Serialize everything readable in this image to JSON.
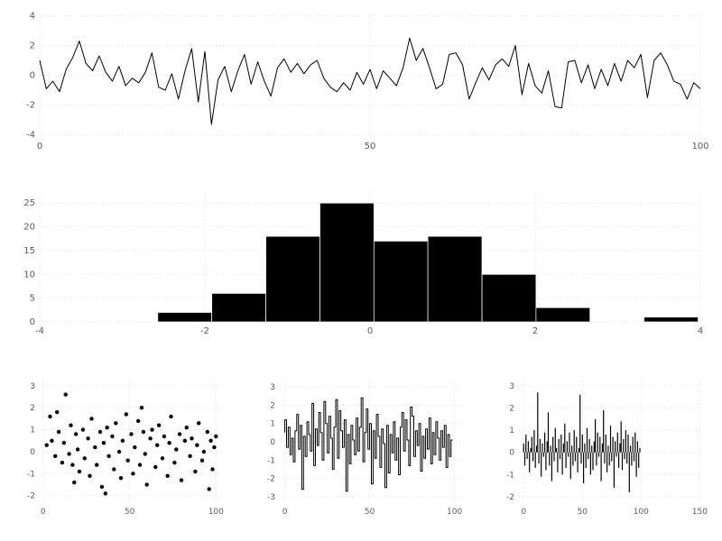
{
  "figure": {
    "background": "#ffffff",
    "foreground": "#000000",
    "grid_color": "#dcdcdc",
    "tick_label_color": "#5a5a5a"
  },
  "chart_data": [
    {
      "name": "noise-line-plot",
      "type": "line",
      "kind": "line",
      "title": "",
      "xlabel": "",
      "ylabel": "",
      "legend_position": "none",
      "grid": true,
      "x0": 0,
      "dx": 1,
      "y": [
        1.0,
        -0.9,
        -0.4,
        -1.1,
        0.4,
        1.2,
        2.3,
        0.8,
        0.3,
        1.3,
        0.2,
        -0.4,
        0.6,
        -0.7,
        -0.2,
        -0.5,
        0.2,
        1.5,
        -0.8,
        -1.0,
        0.1,
        -1.6,
        0.3,
        1.8,
        -1.8,
        1.6,
        -3.3,
        -0.3,
        0.6,
        -1.1,
        0.3,
        1.4,
        -0.6,
        0.9,
        -0.4,
        -1.4,
        0.5,
        1.1,
        0.2,
        0.8,
        0.1,
        0.7,
        1.0,
        -0.2,
        -0.8,
        -1.1,
        -0.5,
        -1.0,
        0.2,
        -0.6,
        0.4,
        -0.9,
        0.3,
        -0.2,
        -0.7,
        0.5,
        2.5,
        1.0,
        1.8,
        0.5,
        -0.9,
        -0.6,
        1.4,
        1.5,
        0.7,
        -1.6,
        -0.5,
        0.5,
        -0.3,
        0.7,
        1.1,
        0.6,
        2.0,
        -1.3,
        0.8,
        -0.7,
        -1.2,
        0.3,
        -2.1,
        -2.2,
        0.9,
        1.0,
        -0.5,
        0.7,
        -0.9,
        0.4,
        -0.7,
        0.8,
        -0.4,
        1.0,
        0.5,
        1.4,
        -1.5,
        1.0,
        1.5,
        0.7,
        -0.4,
        -0.6,
        -1.6,
        -0.5,
        -0.9
      ],
      "xlim": [
        0,
        100
      ],
      "ylim": [
        -4.15,
        4.15
      ],
      "xticks": [
        0,
        50,
        100
      ],
      "yticks": [
        -4,
        -2,
        0,
        2,
        4
      ]
    },
    {
      "name": "histogram",
      "type": "bar",
      "kind": "histogram",
      "title": "",
      "xlabel": "",
      "ylabel": "",
      "legend_position": "none",
      "grid": true,
      "bin_edges": [
        -2.57,
        -1.916,
        -1.261,
        -0.607,
        0.047,
        0.701,
        1.356,
        2.01,
        2.664,
        3.318,
        3.973
      ],
      "counts": [
        2,
        6,
        18,
        25,
        17,
        18,
        10,
        3,
        0,
        1
      ],
      "xlim": [
        -4,
        4
      ],
      "ylim": [
        0,
        27.5
      ],
      "xticks": [
        -4,
        -2,
        0,
        2,
        4
      ],
      "yticks": [
        0,
        5,
        10,
        15,
        20,
        25
      ]
    },
    {
      "name": "scatter-plot",
      "type": "scatter",
      "kind": "scatter",
      "title": "",
      "xlabel": "",
      "ylabel": "",
      "legend_position": "none",
      "grid": true,
      "x": [
        2,
        4,
        5,
        7,
        8,
        9,
        11,
        12,
        13,
        15,
        16,
        18,
        19,
        20,
        21,
        23,
        24,
        26,
        27,
        28,
        30,
        31,
        33,
        34,
        35,
        37,
        38,
        40,
        41,
        42,
        44,
        45,
        46,
        48,
        49,
        51,
        52,
        53,
        55,
        56,
        58,
        59,
        60,
        62,
        63,
        65,
        66,
        67,
        69,
        70,
        72,
        73,
        74,
        76,
        77,
        79,
        80,
        82,
        83,
        85,
        86,
        88,
        89,
        90,
        92,
        93,
        95,
        96,
        97,
        98,
        99,
        100,
        36,
        57,
        17
      ],
      "y": [
        0.3,
        1.6,
        0.5,
        -0.2,
        1.8,
        0.9,
        -0.5,
        0.4,
        2.6,
        -0.1,
        1.2,
        -1.4,
        0.8,
        0.1,
        -0.9,
        1.0,
        -0.3,
        0.6,
        -1.1,
        1.5,
        0.2,
        -0.6,
        0.9,
        -1.6,
        0.4,
        1.1,
        -0.2,
        0.7,
        -0.8,
        1.3,
        0.0,
        -1.2,
        0.5,
        1.7,
        -0.4,
        0.8,
        -1.0,
        0.2,
        1.4,
        -0.6,
        0.9,
        -0.1,
        -1.5,
        0.6,
        1.0,
        -0.7,
        0.3,
        1.2,
        -0.3,
        0.7,
        -1.1,
        0.4,
        1.6,
        -0.5,
        0.1,
        0.8,
        -1.3,
        0.5,
        1.1,
        -0.2,
        0.6,
        -0.9,
        0.3,
        1.3,
        -0.4,
        0.0,
        0.9,
        -1.7,
        0.5,
        -0.8,
        0.2,
        0.7,
        -1.9,
        2.0,
        -0.6
      ],
      "xlim": [
        -2,
        104
      ],
      "ylim": [
        -2.3,
        3.2
      ],
      "xticks": [
        0,
        50,
        100
      ],
      "yticks": [
        -2,
        -1,
        0,
        1,
        2,
        3
      ]
    },
    {
      "name": "step-plot",
      "type": "line",
      "kind": "step",
      "title": "",
      "xlabel": "",
      "ylabel": "",
      "legend_position": "none",
      "grid": true,
      "x0": 0,
      "dx": 1,
      "y": [
        0.5,
        1.2,
        -0.3,
        0.8,
        -0.7,
        0.2,
        -1.1,
        0.6,
        1.5,
        -0.4,
        0.9,
        -2.6,
        0.3,
        -0.8,
        1.1,
        0.4,
        -0.5,
        2.1,
        -1.3,
        0.7,
        -0.2,
        1.6,
        0.5,
        -1.0,
        2.2,
        1.0,
        -0.6,
        1.4,
        0.2,
        -1.5,
        0.8,
        2.3,
        -0.9,
        1.7,
        0.6,
        -0.3,
        1.2,
        -2.7,
        0.4,
        -1.2,
        0.9,
        0.1,
        -0.7,
        1.3,
        -0.5,
        0.8,
        2.4,
        -1.1,
        0.5,
        1.8,
        -0.4,
        1.0,
        -2.3,
        0.6,
        -0.9,
        1.5,
        0.3,
        -1.4,
        0.7,
        -0.1,
        -2.5,
        0.9,
        -1.7,
        0.4,
        -0.6,
        1.1,
        -1.0,
        0.2,
        -1.8,
        0.8,
        1.6,
        -0.5,
        1.2,
        0.1,
        -1.3,
        1.9,
        1.4,
        -0.8,
        0.6,
        -0.2,
        1.0,
        -1.6,
        0.3,
        -0.9,
        0.7,
        -0.4,
        1.3,
        -1.2,
        0.5,
        -0.7,
        1.1,
        0.2,
        -1.0,
        0.6,
        -0.3,
        0.9,
        -1.4,
        0.4,
        -0.8,
        0.1
      ],
      "xlim": [
        -3,
        105
      ],
      "ylim": [
        -3.3,
        3.3
      ],
      "xticks": [
        0,
        50,
        100
      ],
      "yticks": [
        -3,
        -2,
        -1,
        0,
        1,
        2,
        3
      ]
    },
    {
      "name": "stem-plot",
      "type": "bar",
      "kind": "stem",
      "title": "",
      "xlabel": "",
      "ylabel": "",
      "legend_position": "none",
      "grid": true,
      "x0": 0,
      "dx": 1,
      "y": [
        0.4,
        -0.6,
        0.8,
        -0.3,
        0.5,
        -0.9,
        0.2,
        0.7,
        -0.4,
        1.0,
        -0.7,
        0.3,
        2.7,
        -0.5,
        0.6,
        -1.1,
        0.4,
        -0.2,
        0.9,
        -0.8,
        0.5,
        1.8,
        -0.6,
        0.3,
        -1.3,
        0.7,
        -0.4,
        1.1,
        0.2,
        -0.9,
        0.6,
        -0.3,
        0.8,
        -1.0,
        0.4,
        1.3,
        -0.7,
        0.5,
        -0.2,
        0.9,
        -1.2,
        0.3,
        -0.6,
        1.0,
        -0.4,
        0.7,
        -0.9,
        0.2,
        2.6,
        -0.5,
        0.8,
        -1.4,
        0.4,
        -0.7,
        1.1,
        -0.3,
        0.6,
        -1.0,
        0.3,
        -0.8,
        0.5,
        1.5,
        -0.6,
        0.9,
        -0.2,
        0.7,
        -1.3,
        0.4,
        1.9,
        -0.5,
        0.8,
        -0.9,
        0.3,
        -0.6,
        1.2,
        -0.4,
        0.7,
        -1.6,
        0.5,
        -0.2,
        0.9,
        -0.7,
        0.4,
        1.4,
        -0.8,
        0.6,
        -0.3,
        1.0,
        -0.5,
        0.8,
        -1.8,
        0.3,
        -0.6,
        0.7,
        -0.4,
        0.9,
        -1.1,
        0.5,
        -0.7,
        0.2
      ],
      "xlim": [
        -4,
        152
      ],
      "ylim": [
        -2.25,
        3.2
      ],
      "xticks": [
        0,
        50,
        100,
        150
      ],
      "yticks": [
        -2,
        -1,
        0,
        1,
        2,
        3
      ]
    }
  ]
}
